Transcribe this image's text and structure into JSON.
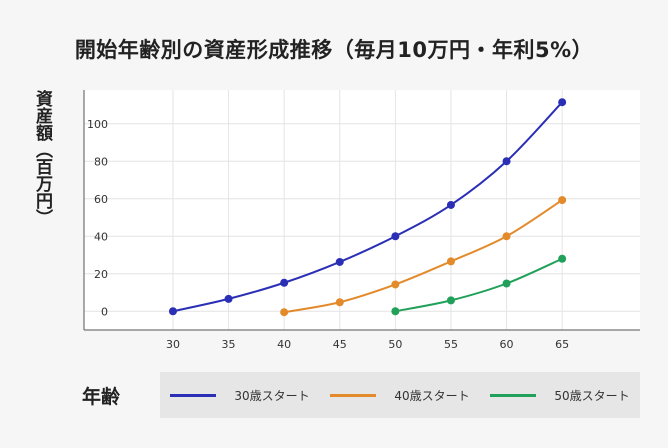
{
  "chart_data": {
    "type": "line",
    "title": "開始年齢別の資産形成推移（毎月10万円・年利5%）",
    "xlabel": "年齢",
    "ylabel": "資産額（百万円）",
    "xlim": [
      22,
      72
    ],
    "ylim": [
      -10,
      118
    ],
    "xticks": [
      30,
      35,
      40,
      45,
      50,
      55,
      60,
      65
    ],
    "yticks": [
      0,
      20,
      40,
      60,
      80,
      100
    ],
    "grid": true,
    "legend": "bottom",
    "series": [
      {
        "name": "30歳スタート",
        "color": "#2b2fb5",
        "x": [
          30,
          35,
          40,
          45,
          50,
          55,
          60,
          65
        ],
        "y": [
          0,
          6.6,
          15.2,
          26.3,
          40.0,
          56.7,
          80.0,
          111.5
        ]
      },
      {
        "name": "40歳スタート",
        "color": "#e38a2a",
        "x": [
          40,
          45,
          50,
          55,
          60,
          65
        ],
        "y": [
          -0.5,
          4.8,
          14.3,
          26.6,
          40.0,
          59.3
        ]
      },
      {
        "name": "50歳スタート",
        "color": "#21a05a",
        "x": [
          50,
          55,
          60,
          65
        ],
        "y": [
          0,
          5.8,
          14.8,
          28.0
        ]
      }
    ]
  }
}
